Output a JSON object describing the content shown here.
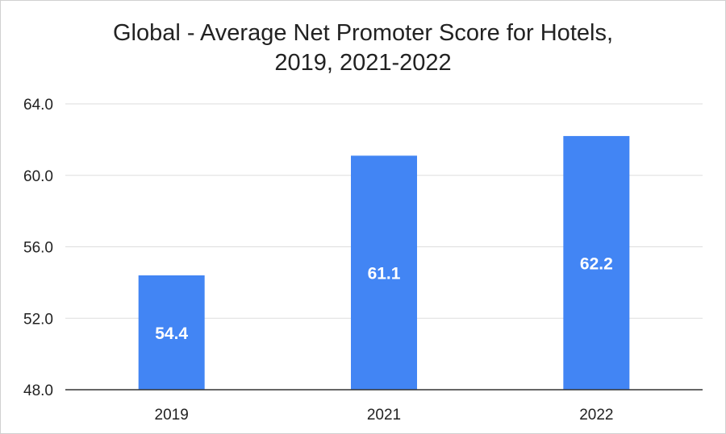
{
  "chart_data": {
    "type": "bar",
    "title": "Global - Average Net Promoter Score for Hotels,",
    "subtitle": "2019, 2021-2022",
    "categories": [
      "2019",
      "2021",
      "2022"
    ],
    "values": [
      54.4,
      61.1,
      62.2
    ],
    "data_labels": [
      "54.4",
      "61.1",
      "62.2"
    ],
    "ylim": [
      48,
      64
    ],
    "yticks": [
      "48.0",
      "52.0",
      "56.0",
      "60.0",
      "64.0"
    ],
    "xlabel": "",
    "ylabel": "",
    "grid": true,
    "legend": "none",
    "bar_color": "#4285f4",
    "grid_color": "#dddddd",
    "axis_color": "#333333"
  }
}
